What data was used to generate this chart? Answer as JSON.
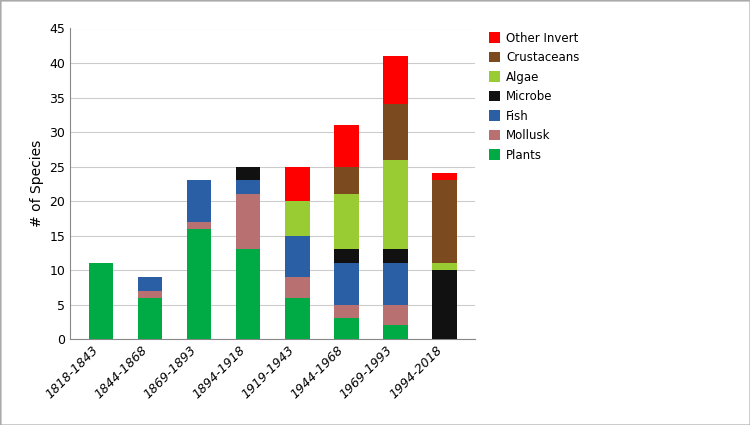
{
  "categories": [
    "1818-1843",
    "1844-1868",
    "1869-1893",
    "1894-1918",
    "1919-1943",
    "1944-1968",
    "1969-1993",
    "1994-2018"
  ],
  "taxa": [
    "Plants",
    "Mollusk",
    "Fish",
    "Microbe",
    "Algae",
    "Crustaceans",
    "Other Invert"
  ],
  "colors": [
    "#00AA44",
    "#B87070",
    "#2B5FA5",
    "#111111",
    "#99CC33",
    "#7B4A1E",
    "#FF0000"
  ],
  "values": {
    "Plants": [
      11,
      6,
      16,
      13,
      6,
      3,
      2,
      0
    ],
    "Mollusk": [
      0,
      1,
      1,
      8,
      3,
      2,
      3,
      0
    ],
    "Fish": [
      0,
      2,
      6,
      2,
      6,
      6,
      6,
      0
    ],
    "Microbe": [
      0,
      0,
      0,
      2,
      0,
      2,
      2,
      10
    ],
    "Algae": [
      0,
      0,
      0,
      0,
      5,
      8,
      13,
      1
    ],
    "Crustaceans": [
      0,
      0,
      0,
      0,
      0,
      4,
      8,
      12
    ],
    "Other Invert": [
      0,
      0,
      0,
      0,
      5,
      6,
      7,
      1
    ]
  },
  "ylabel": "# of Species",
  "ylim": [
    0,
    45
  ],
  "yticks": [
    0,
    5,
    10,
    15,
    20,
    25,
    30,
    35,
    40,
    45
  ],
  "background_color": "#ffffff",
  "bar_width": 0.5,
  "figsize": [
    7.5,
    4.25
  ],
  "dpi": 100
}
